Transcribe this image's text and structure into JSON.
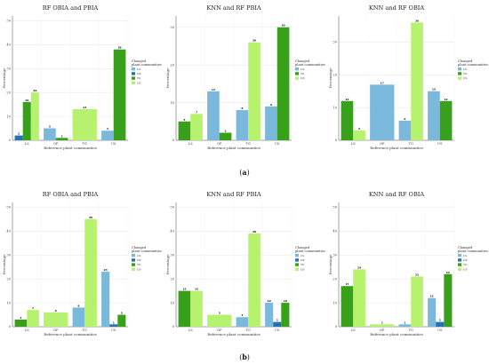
{
  "captions": [
    {
      "open": "(",
      "letter": "a",
      "close": ")"
    },
    {
      "open": "(",
      "letter": "b",
      "close": ")"
    }
  ],
  "chart_data": [
    {
      "type": "bar",
      "title": "RF OBIA and PBIA",
      "xlabel": "Reference plant communities",
      "ylabel": "Percentage",
      "ylim": [
        0,
        52
      ],
      "yticks": [
        0,
        10,
        20,
        30,
        40,
        50
      ],
      "categories": [
        "LS",
        "OP",
        "TG",
        "US"
      ],
      "legend": {
        "title": [
          "Changed",
          "plant communities"
        ],
        "position": "right",
        "entries": [
          "LS",
          "OP",
          "TG",
          "US"
        ]
      },
      "series_colors": {
        "LS": "#7ab8dc",
        "OP": "#2471b4",
        "TG": "#39a01b",
        "US": "#b7f26e"
      },
      "groups": [
        {
          "category": "LS",
          "bars": [
            {
              "series": "OP",
              "value": 2
            },
            {
              "series": "TG",
              "value": 16
            },
            {
              "series": "US",
              "value": 20
            }
          ]
        },
        {
          "category": "OP",
          "bars": [
            {
              "series": "LS",
              "value": 5
            },
            {
              "series": "TG",
              "value": 1
            }
          ]
        },
        {
          "category": "TG",
          "bars": [
            {
              "series": "US",
              "value": 13
            }
          ]
        },
        {
          "category": "US",
          "bars": [
            {
              "series": "LS",
              "value": 4
            },
            {
              "series": "TG",
              "value": 38
            }
          ]
        }
      ]
    },
    {
      "type": "bar",
      "title": "KNN and RF PBIA",
      "xlabel": "Reference plant communities",
      "ylabel": "Percentage",
      "ylim": [
        0,
        33
      ],
      "yticks": [
        0,
        10,
        20,
        30
      ],
      "categories": [
        "LS",
        "OP",
        "TG",
        "US"
      ],
      "legend": {
        "title": [
          "Changed",
          "plant communities"
        ],
        "position": "right",
        "entries": [
          "LS",
          "TG",
          "US"
        ]
      },
      "series_colors": {
        "LS": "#7ab8dc",
        "OP": "#2471b4",
        "TG": "#39a01b",
        "US": "#b7f26e"
      },
      "groups": [
        {
          "category": "LS",
          "bars": [
            {
              "series": "TG",
              "value": 5
            },
            {
              "series": "US",
              "value": 7
            }
          ]
        },
        {
          "category": "OP",
          "bars": [
            {
              "series": "LS",
              "value": 13
            },
            {
              "series": "TG",
              "value": 2
            }
          ]
        },
        {
          "category": "TG",
          "bars": [
            {
              "series": "LS",
              "value": 8
            },
            {
              "series": "US",
              "value": 26
            }
          ]
        },
        {
          "category": "US",
          "bars": [
            {
              "series": "LS",
              "value": 9
            },
            {
              "series": "TG",
              "value": 30
            }
          ]
        }
      ]
    },
    {
      "type": "bar",
      "title": "KNN and RF OBIA",
      "xlabel": "Reference plant communities",
      "ylabel": "Percentage",
      "ylim": [
        0,
        38
      ],
      "yticks": [
        0,
        10,
        20,
        30
      ],
      "categories": [
        "LS",
        "OP",
        "TG",
        "US"
      ],
      "legend": {
        "title": [
          "Changed",
          "plant communities"
        ],
        "position": "right",
        "entries": [
          "LS",
          "TG",
          "US"
        ]
      },
      "series_colors": {
        "LS": "#7ab8dc",
        "OP": "#2471b4",
        "TG": "#39a01b",
        "US": "#b7f26e"
      },
      "groups": [
        {
          "category": "LS",
          "bars": [
            {
              "series": "TG",
              "value": 12
            },
            {
              "series": "US",
              "value": 3
            }
          ]
        },
        {
          "category": "OP",
          "bars": [
            {
              "series": "LS",
              "value": 17
            }
          ]
        },
        {
          "category": "TG",
          "bars": [
            {
              "series": "LS",
              "value": 6
            },
            {
              "series": "US",
              "value": 36
            }
          ]
        },
        {
          "category": "US",
          "bars": [
            {
              "series": "LS",
              "value": 15
            },
            {
              "series": "TG",
              "value": 12
            }
          ]
        }
      ]
    },
    {
      "type": "bar",
      "title": "RF OBIA and PBIA",
      "xlabel": "Reference plant communities",
      "ylabel": "Percentage",
      "ylim": [
        0,
        52
      ],
      "yticks": [
        0,
        10,
        20,
        30,
        40,
        50
      ],
      "categories": [
        "LS",
        "OP",
        "TG",
        "US"
      ],
      "legend": {
        "title": [
          "Changed",
          "plant communities"
        ],
        "position": "right",
        "entries": [
          "LS",
          "OP",
          "TG",
          "US"
        ]
      },
      "series_colors": {
        "LS": "#7ab8dc",
        "OP": "#2471b4",
        "TG": "#39a01b",
        "US": "#b7f26e"
      },
      "groups": [
        {
          "category": "LS",
          "bars": [
            {
              "series": "TG",
              "value": 3
            },
            {
              "series": "US",
              "value": 7
            }
          ]
        },
        {
          "category": "OP",
          "bars": [
            {
              "series": "US",
              "value": 6
            }
          ]
        },
        {
          "category": "TG",
          "bars": [
            {
              "series": "LS",
              "value": 8
            },
            {
              "series": "US",
              "value": 45
            }
          ]
        },
        {
          "category": "US",
          "bars": [
            {
              "series": "LS",
              "value": 23
            },
            {
              "series": "OP",
              "value": 1
            },
            {
              "series": "TG",
              "value": 5
            }
          ]
        }
      ]
    },
    {
      "type": "bar",
      "title": "KNN and RF PBIA",
      "xlabel": "Reference plant communities",
      "ylabel": "Percentage",
      "ylim": [
        0,
        52
      ],
      "yticks": [
        0,
        10,
        20,
        30,
        40,
        50
      ],
      "categories": [
        "LS",
        "OP",
        "TG",
        "US"
      ],
      "legend": {
        "title": [
          "Changed",
          "plant communities"
        ],
        "position": "right",
        "entries": [
          "LS",
          "OP",
          "TG",
          "US"
        ]
      },
      "series_colors": {
        "LS": "#7ab8dc",
        "OP": "#2471b4",
        "TG": "#39a01b",
        "US": "#b7f26e"
      },
      "groups": [
        {
          "category": "LS",
          "bars": [
            {
              "series": "TG",
              "value": 15
            },
            {
              "series": "US",
              "value": 15
            }
          ]
        },
        {
          "category": "OP",
          "bars": [
            {
              "series": "US",
              "value": 5
            }
          ]
        },
        {
          "category": "TG",
          "bars": [
            {
              "series": "LS",
              "value": 4
            },
            {
              "series": "US",
              "value": 39
            }
          ]
        },
        {
          "category": "US",
          "bars": [
            {
              "series": "LS",
              "value": 10
            },
            {
              "series": "OP",
              "value": 2
            },
            {
              "series": "TG",
              "value": 10
            }
          ]
        }
      ]
    },
    {
      "type": "bar",
      "title": "KNN and RF OBIA",
      "xlabel": "Reference plant communities",
      "ylabel": "Percentage",
      "ylim": [
        0,
        52
      ],
      "yticks": [
        0,
        10,
        20,
        30,
        40,
        50
      ],
      "categories": [
        "LS",
        "OP",
        "TG",
        "US"
      ],
      "legend": {
        "title": [
          "Changed",
          "plant communities"
        ],
        "position": "right",
        "entries": [
          "LS",
          "OP",
          "TG",
          "US"
        ]
      },
      "series_colors": {
        "LS": "#7ab8dc",
        "OP": "#2471b4",
        "TG": "#39a01b",
        "US": "#b7f26e"
      },
      "groups": [
        {
          "category": "LS",
          "bars": [
            {
              "series": "TG",
              "value": 17
            },
            {
              "series": "US",
              "value": 24
            }
          ]
        },
        {
          "category": "OP",
          "bars": [
            {
              "series": "US",
              "value": 1
            }
          ]
        },
        {
          "category": "TG",
          "bars": [
            {
              "series": "LS",
              "value": 1
            },
            {
              "series": "US",
              "value": 21
            }
          ]
        },
        {
          "category": "US",
          "bars": [
            {
              "series": "LS",
              "value": 12
            },
            {
              "series": "OP",
              "value": 2
            },
            {
              "series": "TG",
              "value": 22
            }
          ]
        }
      ]
    }
  ]
}
